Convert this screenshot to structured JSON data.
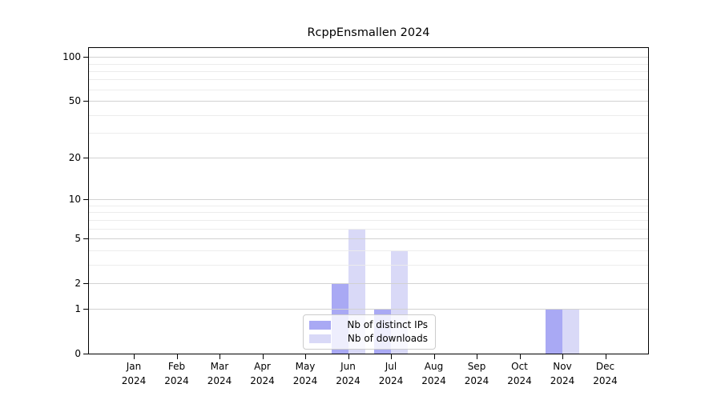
{
  "chart_data": {
    "type": "bar",
    "title": "RcppEnsmallen 2024",
    "categories": [
      "Jan",
      "Feb",
      "Mar",
      "Apr",
      "May",
      "Jun",
      "Jul",
      "Aug",
      "Sep",
      "Oct",
      "Nov",
      "Dec"
    ],
    "category_year": "2024",
    "series": [
      {
        "name": "Nb of distinct IPs",
        "color": "#a9a9f4",
        "values": [
          0,
          0,
          0,
          0,
          0,
          2,
          1,
          0,
          0,
          0,
          1,
          0
        ]
      },
      {
        "name": "Nb of downloads",
        "color": "#d9d9f7",
        "values": [
          0,
          0,
          0,
          0,
          0,
          6,
          4,
          0,
          0,
          0,
          1,
          0
        ]
      }
    ],
    "yscale": "log1p",
    "ylim": [
      0,
      115
    ],
    "yticks": [
      0,
      1,
      2,
      5,
      10,
      20,
      50,
      100
    ],
    "yticks_minor": [
      3,
      4,
      6,
      7,
      8,
      9,
      30,
      40,
      60,
      70,
      80,
      90
    ],
    "grid": "horizontal",
    "legend_position": "lower-center-inside"
  },
  "colors": {
    "major_grid": "#d2d2d2",
    "minor_grid": "#ececec",
    "axis": "#000000",
    "legend_border": "#cccccc"
  }
}
